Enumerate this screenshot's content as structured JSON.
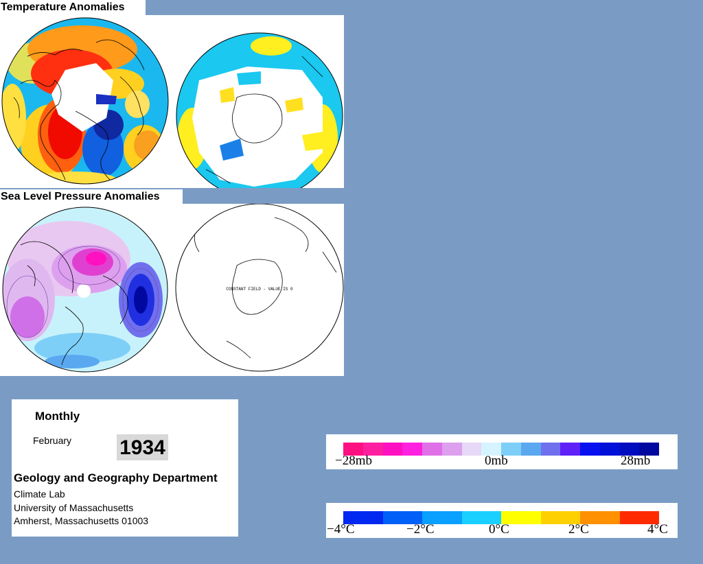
{
  "titles": {
    "temperature": "Temperature Anomalies",
    "pressure": "Sea Level Pressure Anomalies"
  },
  "maps": {
    "sh_pressure_note": "CONSTANT FIELD - VALUE IS 0"
  },
  "info": {
    "period": "Monthly",
    "month": "February",
    "year": "1934",
    "department": "Geology and Geography Department",
    "lab": "Climate Lab",
    "university": "University of Massachusetts",
    "address": "Amherst, Massachusetts 01003"
  },
  "pressure_scale": {
    "labels": [
      "−28mb",
      "0mb",
      "28mb"
    ],
    "colors": [
      "#ff1080",
      "#ff20a0",
      "#ff10c0",
      "#ff20e0",
      "#e070e8",
      "#dda0ee",
      "#e6d8f6",
      "#d6f4ff",
      "#7ecff8",
      "#5aa8f0",
      "#7070ee",
      "#6020f8",
      "#0810f0",
      "#0010d8",
      "#000cc0",
      "#0008a0"
    ]
  },
  "temperature_scale": {
    "labels": [
      "−4°C",
      "−2°C",
      "0°C",
      "2°C",
      "4°C"
    ],
    "colors": [
      "#0028f0",
      "#0060f8",
      "#0aa0ff",
      "#1ad0ff",
      "#ffff00",
      "#ffd000",
      "#ff9000",
      "#ff2a00"
    ]
  }
}
